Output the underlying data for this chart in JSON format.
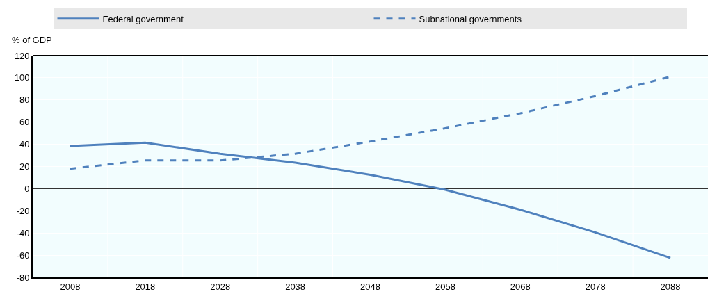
{
  "chart_data": {
    "type": "line",
    "ylabel": "% of GDP",
    "categories": [
      "2008",
      "2018",
      "2028",
      "2038",
      "2048",
      "2058",
      "2068",
      "2078",
      "2088"
    ],
    "series": [
      {
        "name": "Federal government",
        "color": "#4f81bd",
        "line_style": "solid",
        "values": [
          38.5,
          41.5,
          31.5,
          23.5,
          12.5,
          -1,
          -19,
          -39.5,
          -62.5
        ]
      },
      {
        "name": "Subnational governments",
        "color": "#4f81bd",
        "line_style": "dashed",
        "values": [
          18,
          25.5,
          25.5,
          31.5,
          42.5,
          54.5,
          68,
          83.5,
          101
        ]
      }
    ],
    "ylim": [
      -80,
      120
    ],
    "yticks": [
      -80,
      -60,
      -40,
      -20,
      0,
      20,
      40,
      60,
      80,
      100,
      120
    ],
    "grid": true,
    "legend": "top",
    "marker": "none"
  }
}
